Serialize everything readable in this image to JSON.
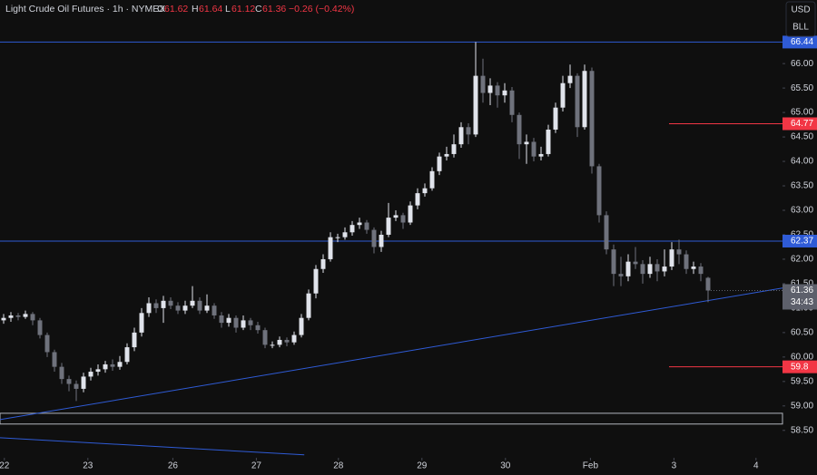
{
  "chart_data": {
    "type": "candlestick",
    "title": "Light Crude Oil Futures · 1h · NYMEX",
    "ohlc_letters": [
      "O",
      "H",
      "L",
      "C"
    ],
    "change": "−0.26 (−0.42%)",
    "currency": "USD",
    "unit": "BLL",
    "countdown": "34:43",
    "up_color": "#e0e3eb",
    "down_color": "#6f727c",
    "open": [
      60.75,
      60.8,
      60.85,
      60.82,
      60.88,
      60.75,
      60.45,
      60.1,
      59.8,
      59.55,
      59.45,
      59.35,
      59.6,
      59.7,
      59.75,
      59.85,
      59.8,
      59.9,
      60.2,
      60.5,
      60.9,
      61.1,
      61.0,
      61.15,
      61.05,
      60.95,
      61.05,
      61.15,
      60.95,
      61.05,
      60.85,
      60.7,
      60.8,
      60.6,
      60.75,
      60.65,
      60.55,
      60.25,
      60.25,
      60.35,
      60.3,
      60.45,
      60.8,
      61.3,
      61.8,
      62.0,
      62.45,
      62.45,
      62.55,
      62.7,
      62.75,
      62.6,
      62.25,
      62.5,
      62.85,
      62.9,
      62.75,
      63.1,
      63.35,
      63.45,
      63.8,
      64.1,
      64.15,
      64.35,
      64.7,
      64.55,
      65.75,
      65.4,
      65.55,
      65.35,
      65.45,
      64.95,
      64.35,
      64.4,
      64.1,
      64.15,
      64.65,
      65.1,
      65.6,
      65.75,
      64.7,
      65.85,
      63.9,
      62.9,
      62.2,
      61.7,
      61.65,
      61.95,
      61.9,
      61.7,
      61.9,
      61.75,
      61.85,
      62.2,
      62.1,
      61.8,
      61.85,
      61.62
    ],
    "high": [
      60.88,
      60.92,
      60.9,
      60.95,
      60.92,
      60.8,
      60.5,
      60.15,
      59.88,
      59.62,
      59.52,
      59.68,
      59.78,
      59.85,
      59.92,
      59.95,
      60.02,
      60.28,
      60.6,
      61.0,
      61.22,
      61.18,
      61.25,
      61.22,
      61.12,
      61.15,
      61.45,
      61.22,
      61.28,
      61.1,
      60.92,
      60.88,
      60.85,
      60.85,
      60.8,
      60.72,
      60.6,
      60.32,
      60.42,
      60.4,
      60.52,
      60.88,
      61.38,
      61.88,
      62.1,
      62.55,
      62.52,
      62.65,
      62.78,
      62.85,
      62.8,
      62.65,
      62.58,
      63.15,
      63.0,
      62.95,
      63.18,
      63.45,
      63.55,
      63.88,
      64.18,
      64.3,
      64.55,
      64.8,
      64.78,
      66.44,
      66.1,
      65.7,
      65.62,
      65.6,
      65.52,
      65.0,
      64.55,
      64.48,
      64.3,
      64.75,
      65.2,
      65.75,
      65.98,
      65.8,
      65.98,
      65.92,
      63.95,
      62.98,
      62.3,
      62.05,
      62.1,
      62.25,
      61.98,
      62.05,
      62.0,
      62.2,
      62.35,
      62.4,
      62.18,
      61.95,
      61.92,
      61.64
    ],
    "low": [
      60.68,
      60.72,
      60.75,
      60.78,
      60.65,
      60.38,
      60.0,
      59.7,
      59.45,
      59.3,
      59.1,
      59.28,
      59.52,
      59.62,
      59.68,
      59.72,
      59.74,
      59.85,
      60.12,
      60.42,
      60.82,
      60.9,
      60.7,
      60.98,
      60.88,
      60.88,
      61.0,
      60.88,
      60.9,
      60.78,
      60.6,
      60.62,
      60.5,
      60.55,
      60.55,
      60.48,
      60.18,
      60.18,
      60.2,
      60.22,
      60.25,
      60.4,
      60.75,
      61.2,
      61.72,
      61.95,
      62.35,
      62.4,
      62.48,
      62.62,
      62.52,
      62.12,
      62.15,
      62.45,
      62.78,
      62.62,
      62.7,
      63.02,
      63.28,
      63.4,
      63.72,
      64.02,
      64.08,
      64.28,
      64.35,
      64.5,
      65.2,
      65.15,
      65.1,
      65.2,
      64.8,
      64.05,
      63.95,
      64.0,
      64.02,
      64.1,
      64.58,
      65.02,
      65.5,
      64.5,
      64.65,
      63.75,
      62.75,
      62.1,
      61.45,
      61.45,
      61.55,
      61.8,
      61.5,
      61.62,
      61.55,
      61.65,
      61.78,
      61.9,
      61.7,
      61.7,
      61.55,
      61.12
    ],
    "close": [
      60.8,
      60.85,
      60.82,
      60.88,
      60.75,
      60.45,
      60.1,
      59.8,
      59.55,
      59.45,
      59.35,
      59.6,
      59.7,
      59.75,
      59.85,
      59.8,
      59.9,
      60.2,
      60.5,
      60.9,
      61.1,
      61.0,
      61.15,
      61.05,
      60.95,
      61.05,
      61.15,
      60.95,
      61.05,
      60.85,
      60.7,
      60.8,
      60.6,
      60.75,
      60.65,
      60.55,
      60.25,
      60.25,
      60.35,
      60.3,
      60.45,
      60.8,
      61.3,
      61.8,
      62.0,
      62.45,
      62.45,
      62.55,
      62.7,
      62.75,
      62.6,
      62.25,
      62.5,
      62.85,
      62.9,
      62.75,
      63.1,
      63.35,
      63.45,
      63.8,
      64.1,
      64.15,
      64.35,
      64.7,
      64.55,
      65.75,
      65.4,
      65.55,
      65.35,
      65.45,
      64.95,
      64.35,
      64.4,
      64.1,
      64.15,
      64.65,
      65.1,
      65.6,
      65.75,
      64.7,
      65.85,
      63.9,
      62.9,
      62.2,
      61.7,
      61.65,
      61.95,
      61.9,
      61.7,
      61.9,
      61.75,
      61.85,
      62.2,
      62.1,
      61.8,
      61.85,
      61.7,
      61.36
    ],
    "xlim": [
      -0.5,
      107.25
    ],
    "xticks": [
      {
        "value": 0.1,
        "label": "22"
      },
      {
        "value": 11.6,
        "label": "23"
      },
      {
        "value": 23.3,
        "label": "26"
      },
      {
        "value": 34.8,
        "label": "27"
      },
      {
        "value": 46.1,
        "label": "28"
      },
      {
        "value": 57.6,
        "label": "29"
      },
      {
        "value": 69.1,
        "label": "30"
      },
      {
        "value": 80.8,
        "label": "Feb"
      },
      {
        "value": 92.3,
        "label": "3"
      },
      {
        "value": 103.6,
        "label": "4"
      }
    ],
    "ylim": [
      57.94,
      67.3
    ],
    "yticks": [
      {
        "value": 58.5,
        "label": "58.50"
      },
      {
        "value": 59,
        "label": "59.00"
      },
      {
        "value": 59.5,
        "label": "59.50"
      },
      {
        "value": 60,
        "label": "60.00"
      },
      {
        "value": 60.5,
        "label": "60.50"
      },
      {
        "value": 61,
        "label": "61.00"
      },
      {
        "value": 61.5,
        "label": "61.50"
      },
      {
        "value": 62,
        "label": "62.00"
      },
      {
        "value": 62.5,
        "label": "62.50"
      },
      {
        "value": 63,
        "label": "63.00"
      },
      {
        "value": 63.5,
        "label": "63.50"
      },
      {
        "value": 64,
        "label": "64.00"
      },
      {
        "value": 64.5,
        "label": "64.50"
      },
      {
        "value": 65,
        "label": "65.00"
      },
      {
        "value": 65.5,
        "label": "65.50"
      },
      {
        "value": 66,
        "label": "66.00"
      }
    ],
    "hlines": [
      {
        "price": 66.44,
        "color": "#2f5bd6"
      },
      {
        "price": 62.37,
        "color": "#2f5bd6"
      }
    ],
    "targets": [
      {
        "price": 64.77,
        "color": "#f23645"
      },
      {
        "price": 59.8,
        "color": "#f23645"
      }
    ],
    "trendlines": [
      {
        "x": [
          -0.5,
          107.25
        ],
        "y": [
          58.72,
          61.41
        ],
        "color": "#2f5bd6"
      },
      {
        "x": [
          -0.5,
          41.4
        ],
        "y": [
          58.35,
          58.0
        ],
        "color": "#2f5bd6"
      }
    ],
    "zone": {
      "y": [
        58.63,
        58.85
      ],
      "color": "#b2b5be"
    }
  }
}
